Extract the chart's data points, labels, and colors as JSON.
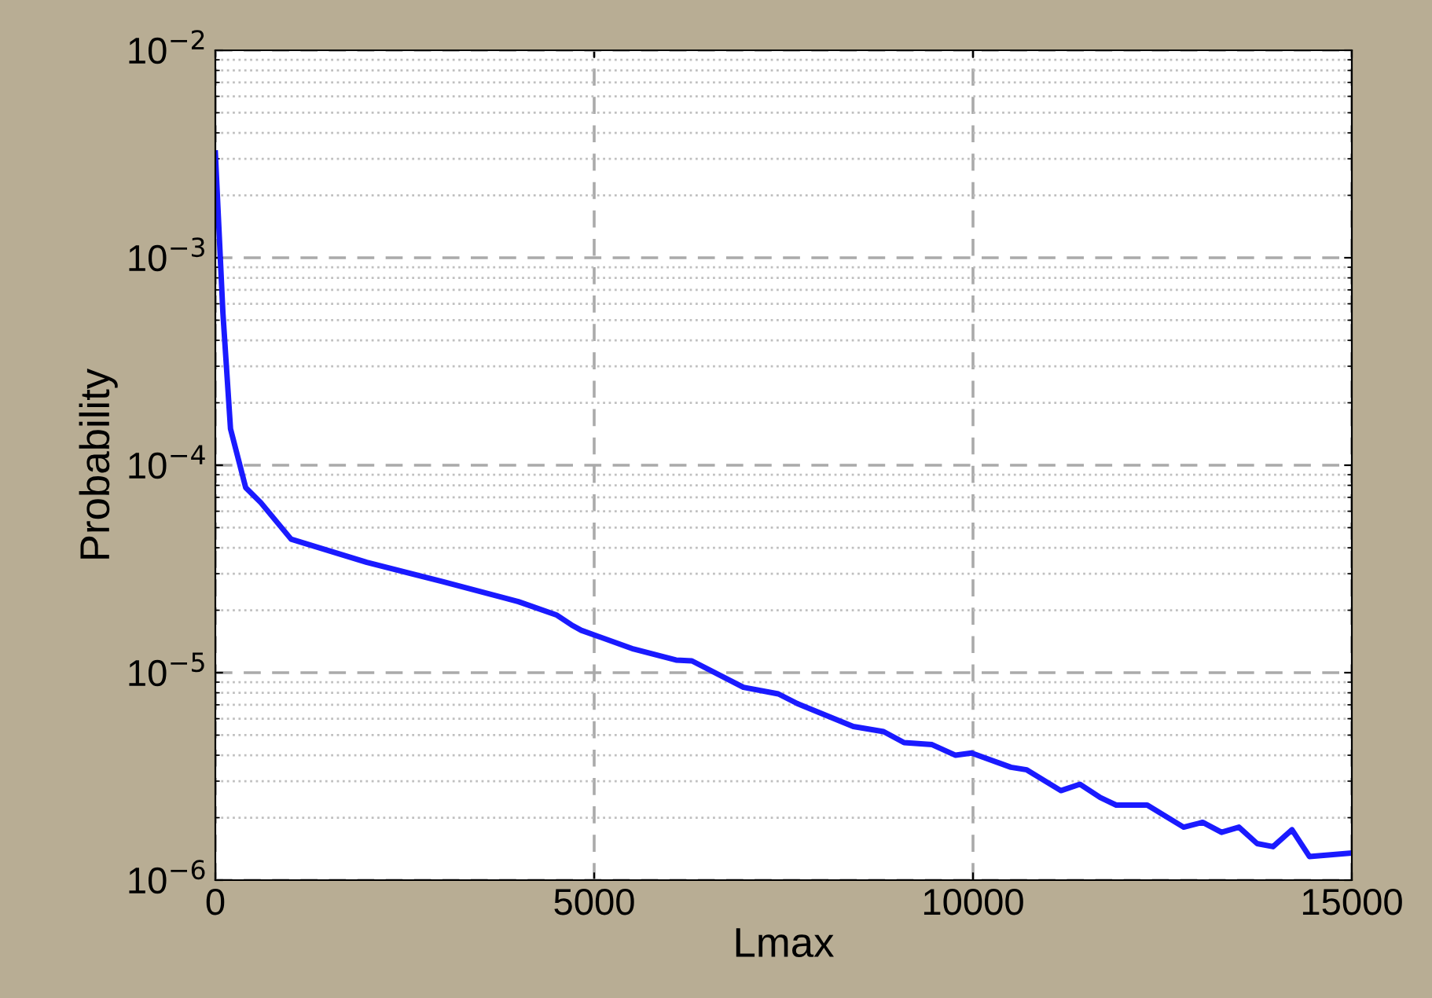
{
  "chart_data": {
    "type": "line",
    "xlabel": "Lmax",
    "ylabel": "Probability",
    "log": "y",
    "grid": true,
    "line_style": "solid",
    "marker": "none",
    "xlim": [
      0,
      15000
    ],
    "ylim": [
      1e-06,
      0.01
    ],
    "xticks": [
      0,
      5000,
      10000,
      15000
    ],
    "yticks": [
      {
        "value": 1e-06,
        "label": "10$^{−6}$"
      },
      {
        "value": 1e-05,
        "label": "10$^{−5}$"
      },
      {
        "value": 0.0001,
        "label": "10$^{−4}$"
      },
      {
        "value": 0.001,
        "label": "10$^{−3}$"
      },
      {
        "value": 0.01,
        "label": "10$^{−2}$"
      }
    ],
    "series": [
      {
        "color": "#1a1aff",
        "x": [
          0,
          100,
          200,
          400,
          600,
          1000,
          2000,
          3000,
          4000,
          4500,
          4700,
          4830,
          5520,
          6080,
          6290,
          6970,
          7430,
          7680,
          8420,
          8820,
          9090,
          9460,
          9770,
          9980,
          10500,
          10710,
          11160,
          11410,
          11680,
          11890,
          12300,
          12780,
          13030,
          13280,
          13510,
          13750,
          13960,
          14210,
          14440,
          15000
        ],
        "values": [
          0.0032,
          0.00054,
          0.00015,
          7.8e-05,
          6.6e-05,
          4.4e-05,
          3.4e-05,
          2.75e-05,
          2.2e-05,
          1.9e-05,
          1.7e-05,
          1.6e-05,
          1.3e-05,
          1.15e-05,
          1.14e-05,
          8.5e-06,
          7.9e-06,
          7.1e-06,
          5.5e-06,
          5.2e-06,
          4.6e-06,
          4.5e-06,
          4e-06,
          4.1e-06,
          3.5e-06,
          3.4e-06,
          2.7e-06,
          2.9e-06,
          2.5e-06,
          2.3e-06,
          2.3e-06,
          1.8e-06,
          1.9e-06,
          1.7e-06,
          1.8e-06,
          1.5e-06,
          1.45e-06,
          1.75e-06,
          1.3e-06,
          1.35e-06
        ]
      }
    ]
  }
}
